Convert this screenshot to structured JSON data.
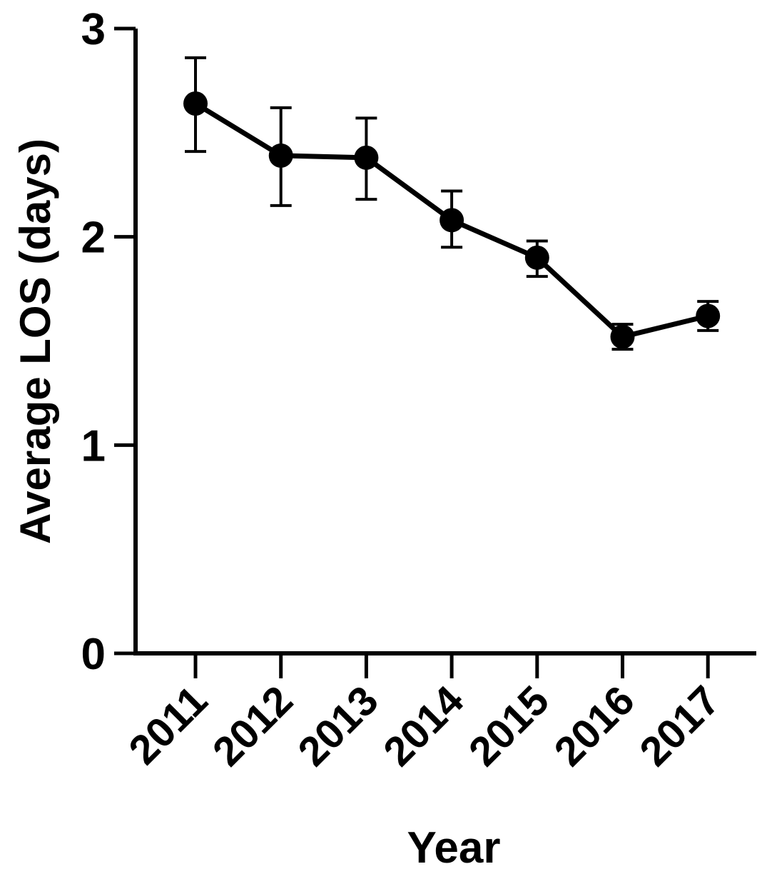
{
  "chart_data": {
    "type": "line",
    "title": "",
    "xlabel": "Year",
    "ylabel": "Average LOS (days)",
    "categories": [
      "2011",
      "2012",
      "2013",
      "2014",
      "2015",
      "2016",
      "2017"
    ],
    "series": [
      {
        "values": [
          2.64,
          2.39,
          2.38,
          2.08,
          1.9,
          1.52,
          1.62
        ],
        "error_upper": [
          2.86,
          2.62,
          2.57,
          2.22,
          1.98,
          1.58,
          1.69
        ],
        "error_lower": [
          2.41,
          2.15,
          2.18,
          1.95,
          1.81,
          1.46,
          1.55
        ],
        "color": "#000000"
      }
    ],
    "ylim": [
      0,
      3
    ],
    "yticks": [
      "0",
      "1",
      "2",
      "3"
    ],
    "grid": false,
    "legend": "none"
  }
}
